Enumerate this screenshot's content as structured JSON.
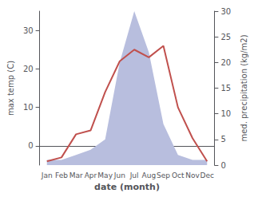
{
  "chart_data": {
    "type": "line",
    "categories": [
      "Jan",
      "Feb",
      "Mar",
      "Apr",
      "May",
      "Jun",
      "Jul",
      "Aug",
      "Sep",
      "Oct",
      "Nov",
      "Dec"
    ],
    "xlabel": "date (month)",
    "ylabel": "max temp (C)",
    "y2label": "med. precipitation (kg/m2)",
    "ylim": [
      -5,
      35
    ],
    "yticks": [
      0,
      10,
      20,
      30
    ],
    "y2lim": [
      0,
      30
    ],
    "y2ticks": [
      0,
      5,
      10,
      15,
      20,
      25,
      30
    ],
    "grid": false,
    "series": [
      {
        "type": "area",
        "color": "#b8bede",
        "axis": "y2",
        "values": [
          1,
          1,
          2,
          3,
          5,
          20,
          30,
          22,
          8,
          2,
          1,
          1
        ]
      },
      {
        "type": "line",
        "color": "#c0504d",
        "values": [
          -4,
          -3,
          3,
          4,
          14,
          22,
          25,
          23,
          26,
          10,
          2,
          -4
        ]
      }
    ]
  }
}
